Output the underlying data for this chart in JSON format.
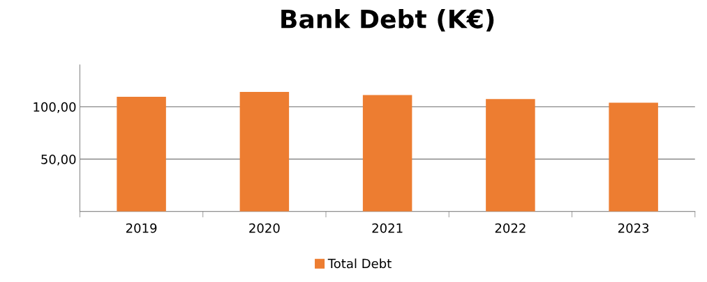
{
  "chart_data": {
    "type": "bar",
    "title": "Bank Debt (K€)",
    "categories": [
      "2019",
      "2020",
      "2021",
      "2022",
      "2023"
    ],
    "series": [
      {
        "name": "Total Debt",
        "color": "#ed7d31",
        "values": [
          109.5,
          114.2,
          111.2,
          107.3,
          103.9
        ]
      }
    ],
    "ylim": [
      0,
      140
    ],
    "yticks": [
      {
        "value": 0,
        "label": null
      },
      {
        "value": 50,
        "label": "50,00"
      },
      {
        "value": 100,
        "label": "100,00"
      }
    ],
    "grid": "y",
    "legend": "bottom"
  }
}
